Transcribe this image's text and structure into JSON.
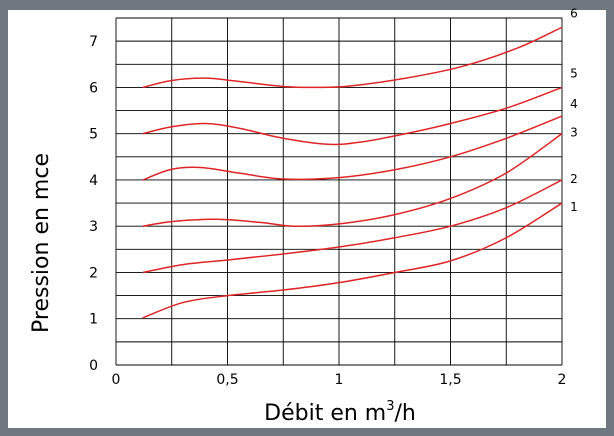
{
  "chart_data": {
    "type": "line",
    "xlabel_prefix": "Débit en m",
    "xlabel_superscript": "3",
    "xlabel_suffix": "/h",
    "ylabel": "Pression en mce",
    "xlim": [
      0,
      2
    ],
    "ylim": [
      0,
      7.5
    ],
    "x_ticks": [
      {
        "value": 0,
        "label": "0"
      },
      {
        "value": 0.5,
        "label": "0,5"
      },
      {
        "value": 1,
        "label": "1"
      },
      {
        "value": 1.5,
        "label": "1,5"
      },
      {
        "value": 2,
        "label": "2"
      }
    ],
    "y_ticks": [
      {
        "value": 0,
        "label": "0"
      },
      {
        "value": 1,
        "label": "1"
      },
      {
        "value": 2,
        "label": "2"
      },
      {
        "value": 3,
        "label": "3"
      },
      {
        "value": 4,
        "label": "4"
      },
      {
        "value": 5,
        "label": "5"
      },
      {
        "value": 6,
        "label": "6"
      },
      {
        "value": 7,
        "label": "7"
      }
    ],
    "x_grid_step": 0.25,
    "y_grid_step": 0.5,
    "grid": true,
    "curve_color": "#e02424",
    "series": [
      {
        "name": "1",
        "points": [
          [
            0.12,
            1.02
          ],
          [
            0.3,
            1.35
          ],
          [
            0.5,
            1.5
          ],
          [
            0.75,
            1.62
          ],
          [
            1.0,
            1.78
          ],
          [
            1.25,
            2.0
          ],
          [
            1.5,
            2.25
          ],
          [
            1.75,
            2.75
          ],
          [
            2.0,
            3.5
          ]
        ]
      },
      {
        "name": "2",
        "points": [
          [
            0.12,
            2.0
          ],
          [
            0.3,
            2.17
          ],
          [
            0.5,
            2.27
          ],
          [
            0.75,
            2.4
          ],
          [
            1.0,
            2.55
          ],
          [
            1.25,
            2.75
          ],
          [
            1.5,
            3.0
          ],
          [
            1.75,
            3.4
          ],
          [
            2.0,
            4.0
          ]
        ]
      },
      {
        "name": "3",
        "points": [
          [
            0.12,
            3.0
          ],
          [
            0.25,
            3.1
          ],
          [
            0.45,
            3.15
          ],
          [
            0.65,
            3.08
          ],
          [
            0.8,
            3.0
          ],
          [
            1.0,
            3.05
          ],
          [
            1.25,
            3.25
          ],
          [
            1.5,
            3.6
          ],
          [
            1.75,
            4.15
          ],
          [
            2.0,
            5.0
          ]
        ]
      },
      {
        "name": "4",
        "points": [
          [
            0.12,
            4.0
          ],
          [
            0.25,
            4.23
          ],
          [
            0.38,
            4.27
          ],
          [
            0.55,
            4.15
          ],
          [
            0.75,
            4.02
          ],
          [
            1.0,
            4.05
          ],
          [
            1.25,
            4.22
          ],
          [
            1.5,
            4.5
          ],
          [
            1.75,
            4.9
          ],
          [
            2.0,
            5.38
          ]
        ]
      },
      {
        "name": "5",
        "points": [
          [
            0.12,
            5.0
          ],
          [
            0.25,
            5.15
          ],
          [
            0.4,
            5.22
          ],
          [
            0.55,
            5.12
          ],
          [
            0.75,
            4.9
          ],
          [
            0.95,
            4.77
          ],
          [
            1.1,
            4.82
          ],
          [
            1.3,
            5.0
          ],
          [
            1.5,
            5.22
          ],
          [
            1.75,
            5.55
          ],
          [
            2.0,
            6.0
          ]
        ]
      },
      {
        "name": "6",
        "points": [
          [
            0.12,
            6.0
          ],
          [
            0.25,
            6.15
          ],
          [
            0.4,
            6.2
          ],
          [
            0.55,
            6.13
          ],
          [
            0.75,
            6.02
          ],
          [
            0.9,
            6.0
          ],
          [
            1.05,
            6.03
          ],
          [
            1.3,
            6.2
          ],
          [
            1.55,
            6.45
          ],
          [
            1.8,
            6.85
          ],
          [
            2.0,
            7.3
          ]
        ]
      }
    ]
  }
}
